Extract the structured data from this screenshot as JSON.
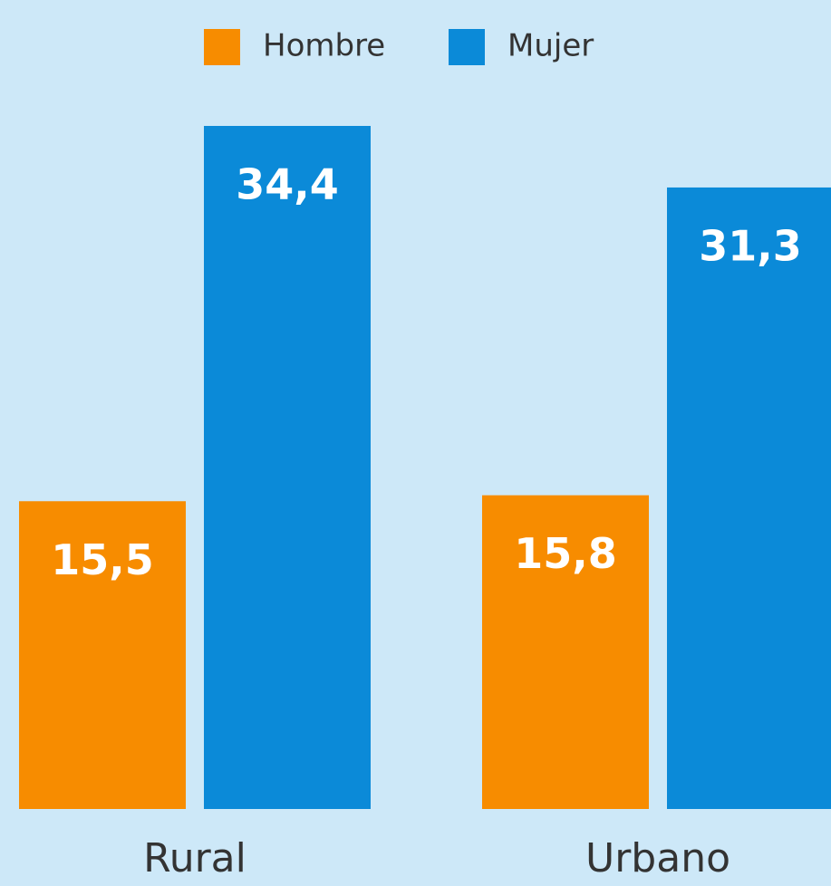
{
  "chart_data": {
    "type": "bar",
    "categories": [
      "Rural",
      "Urbano"
    ],
    "series": [
      {
        "name": "Hombre",
        "color": "#f78c00",
        "values": [
          15.5,
          15.8
        ],
        "value_labels": [
          "15,5",
          "15,8"
        ]
      },
      {
        "name": "Mujer",
        "color": "#0b8ad8",
        "values": [
          34.4,
          31.3
        ],
        "value_labels": [
          "34,4",
          "31,3"
        ]
      }
    ],
    "legend": "top"
  }
}
